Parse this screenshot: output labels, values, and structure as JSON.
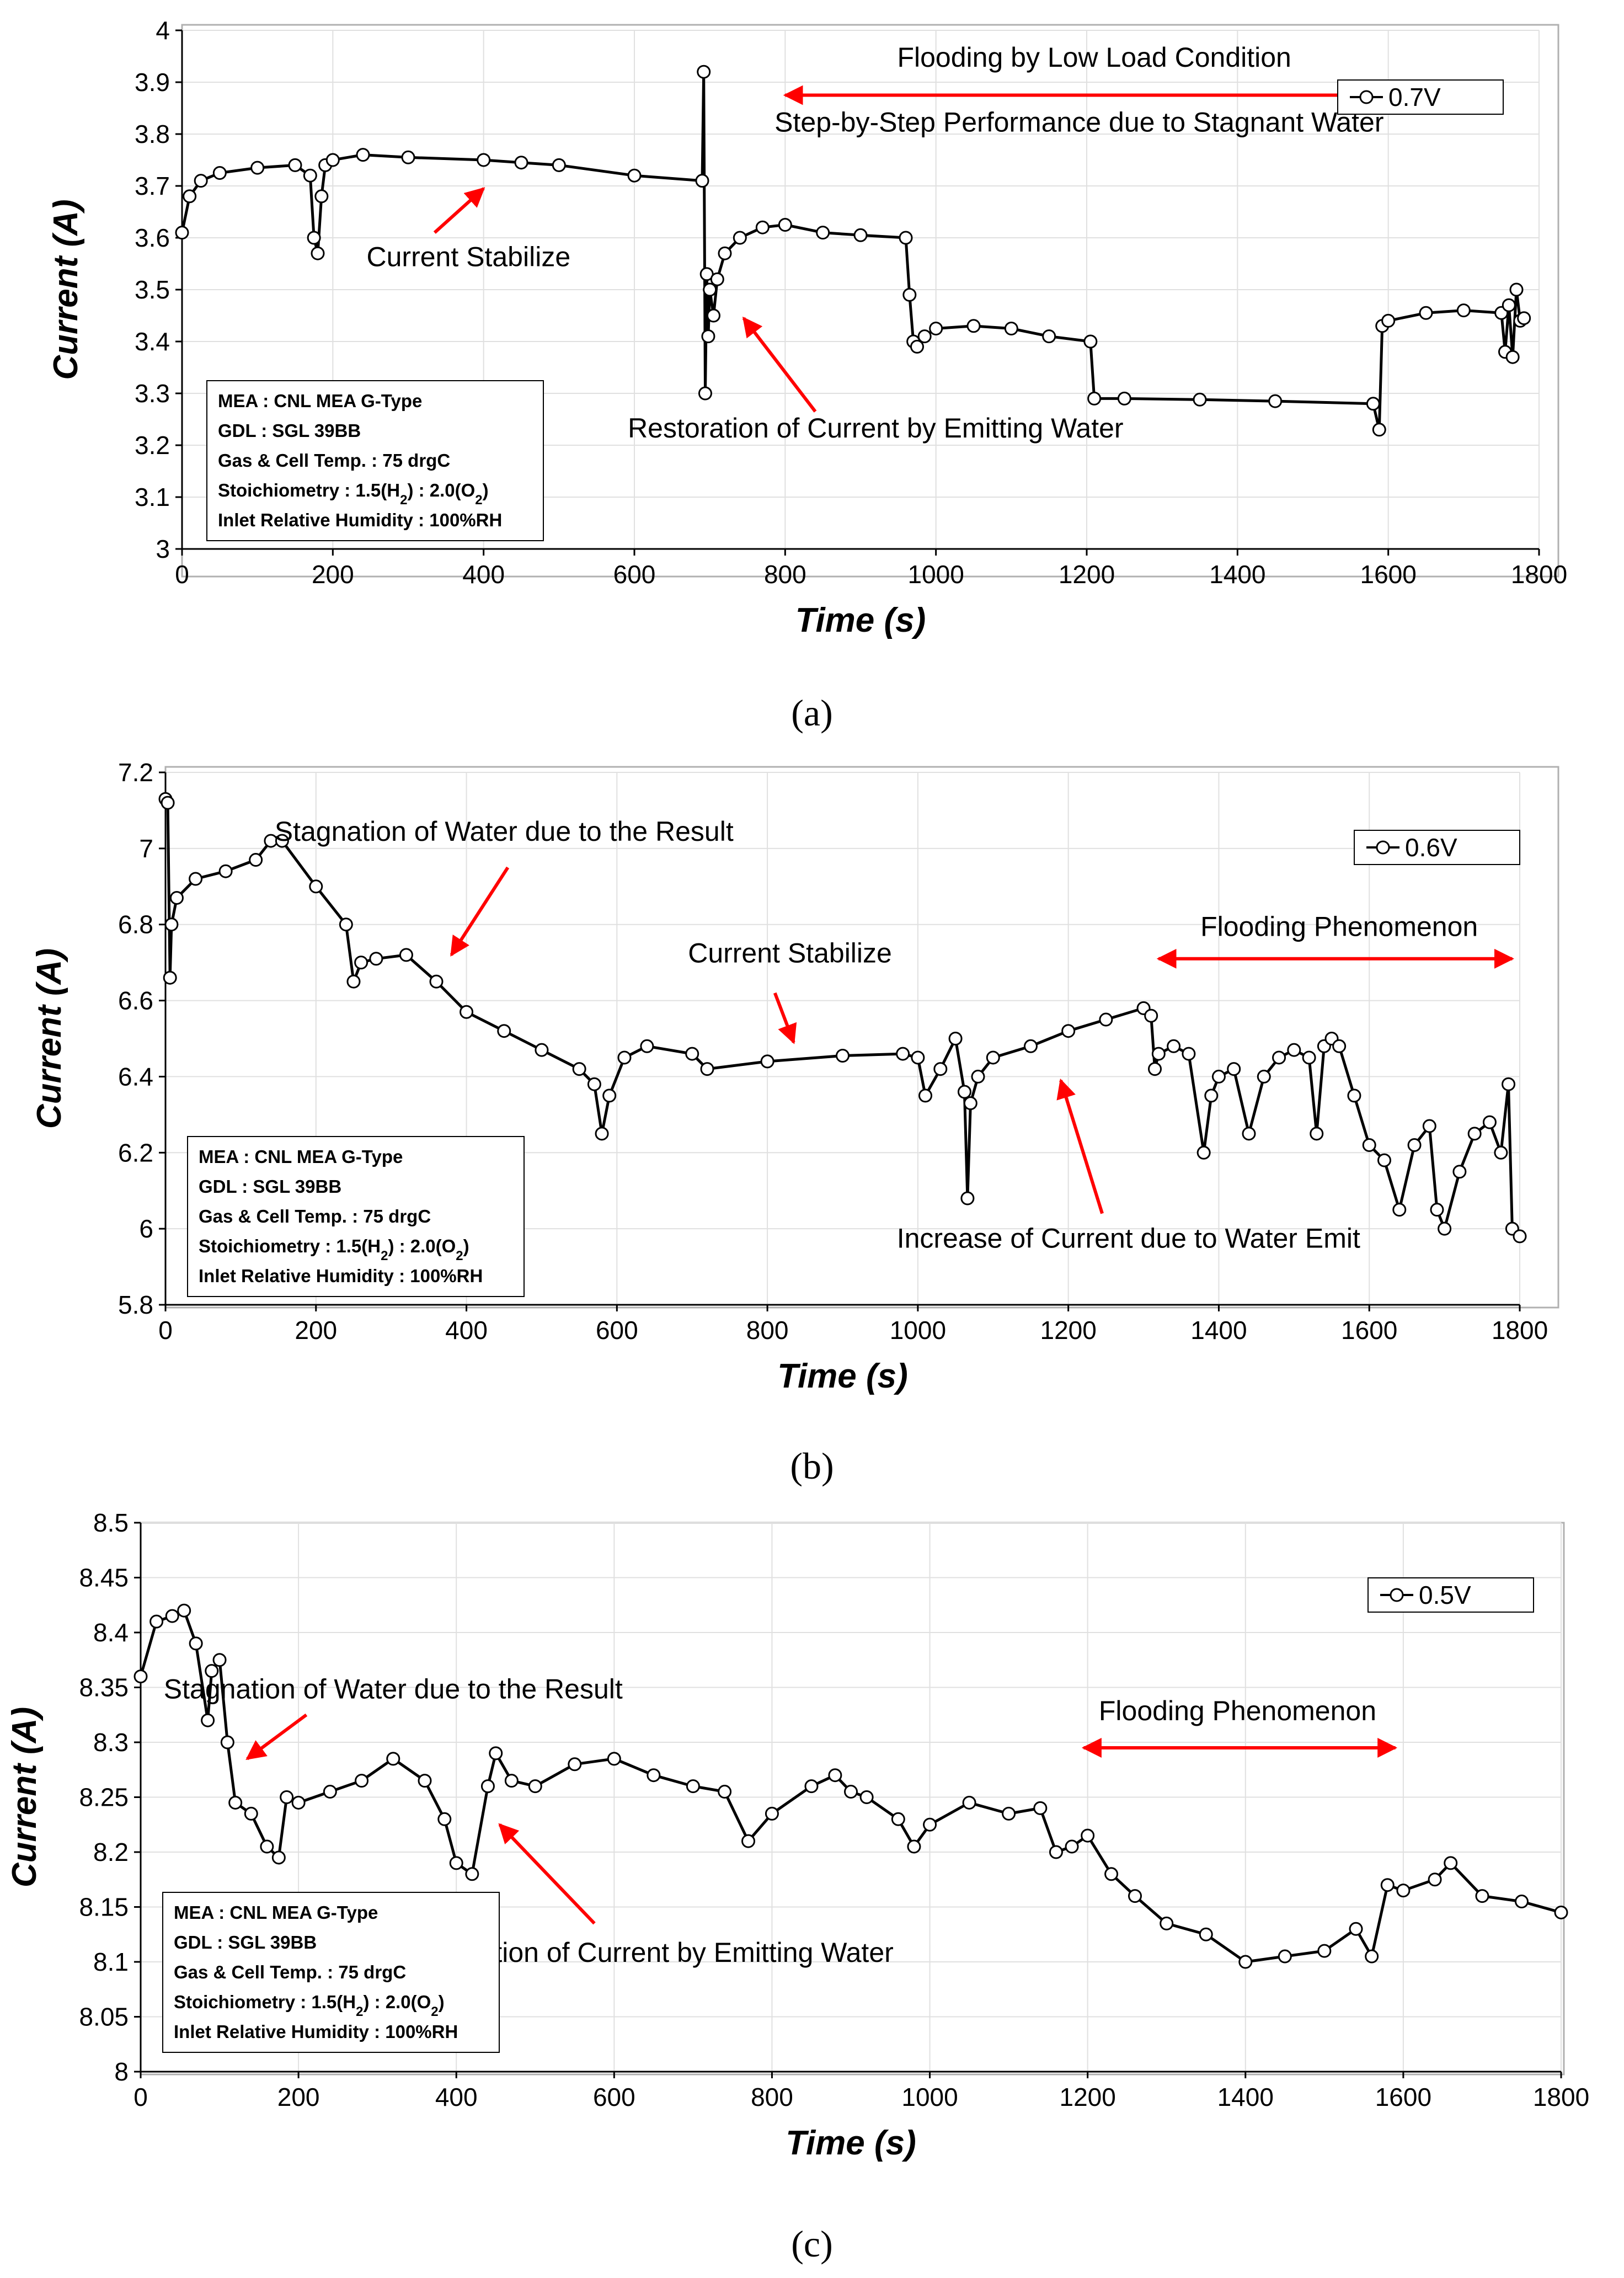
{
  "chart_data": [
    {
      "type": "line",
      "panel": "a",
      "caption": "(a)",
      "xlabel": "Time (s)",
      "ylabel": "Current (A)",
      "xlim": [
        0,
        1800
      ],
      "ylim": [
        3,
        4
      ],
      "xticks": [
        0,
        200,
        400,
        600,
        800,
        1000,
        1200,
        1400,
        1600,
        1800
      ],
      "yticks": [
        3,
        3.1,
        3.2,
        3.3,
        3.4,
        3.5,
        3.6,
        3.7,
        3.8,
        3.9,
        4
      ],
      "grid": true,
      "legend": {
        "position": "top-right",
        "label": "0.7V"
      },
      "info_box": [
        "MEA : CNL MEA G-Type",
        "GDL : SGL 39BB",
        "Gas & Cell Temp. : 75 drgC",
        "Stoichiometry : 1.5(H2) : 2.0(O2)",
        "Inlet Relative Humidity : 100%RH"
      ],
      "annotations": [
        {
          "text": "Flooding by Low Load Condition",
          "x": 1210,
          "y": 3.93
        },
        {
          "text": "Step-by-Step Performance due to Stagnant Water",
          "x": 1190,
          "y": 3.805
        },
        {
          "text": "Current Stabilize",
          "x": 380,
          "y": 3.545
        },
        {
          "text": "Restoration of Current by Emitting Water",
          "x": 920,
          "y": 3.215
        }
      ],
      "ranges": [
        {
          "x1": 800,
          "x2": 1590,
          "y": 3.875
        }
      ],
      "arrows": [
        {
          "x1": 335,
          "y1": 3.61,
          "x2": 400,
          "y2": 3.695
        },
        {
          "x1": 840,
          "y1": 3.265,
          "x2": 745,
          "y2": 3.445
        }
      ],
      "series": [
        {
          "name": "0.7V",
          "x": [
            0,
            10,
            25,
            50,
            100,
            150,
            170,
            175,
            180,
            185,
            190,
            200,
            240,
            300,
            400,
            450,
            500,
            600,
            690,
            692,
            694,
            696,
            698,
            700,
            705,
            710,
            720,
            740,
            770,
            800,
            850,
            900,
            960,
            965,
            970,
            975,
            985,
            1000,
            1050,
            1100,
            1150,
            1205,
            1210,
            1250,
            1350,
            1450,
            1580,
            1588,
            1592,
            1600,
            1650,
            1700,
            1750,
            1755,
            1760,
            1765,
            1770,
            1775,
            1780
          ],
          "y": [
            3.61,
            3.68,
            3.71,
            3.725,
            3.735,
            3.74,
            3.72,
            3.6,
            3.57,
            3.68,
            3.74,
            3.75,
            3.76,
            3.755,
            3.75,
            3.745,
            3.74,
            3.72,
            3.71,
            3.92,
            3.3,
            3.53,
            3.41,
            3.5,
            3.45,
            3.52,
            3.57,
            3.6,
            3.62,
            3.625,
            3.61,
            3.605,
            3.6,
            3.49,
            3.4,
            3.39,
            3.41,
            3.425,
            3.43,
            3.425,
            3.41,
            3.4,
            3.29,
            3.29,
            3.288,
            3.285,
            3.28,
            3.23,
            3.43,
            3.44,
            3.455,
            3.46,
            3.455,
            3.38,
            3.47,
            3.37,
            3.5,
            3.44,
            3.445
          ]
        }
      ]
    },
    {
      "type": "line",
      "panel": "b",
      "caption": "(b)",
      "xlabel": "Time (s)",
      "ylabel": "Current (A)",
      "xlim": [
        0,
        1800
      ],
      "ylim": [
        5.8,
        7.2
      ],
      "xticks": [
        0,
        200,
        400,
        600,
        800,
        1000,
        1200,
        1400,
        1600,
        1800
      ],
      "yticks": [
        5.8,
        6,
        6.2,
        6.4,
        6.6,
        6.8,
        7,
        7.2
      ],
      "grid": true,
      "legend": {
        "position": "top-right",
        "label": "0.6V"
      },
      "info_box": [
        "MEA : CNL MEA G-Type",
        "GDL : SGL 39BB",
        "Gas & Cell Temp. : 75 drgC",
        "Stoichiometry : 1.5(H2) : 2.0(O2)",
        "Inlet Relative Humidity : 100%RH"
      ],
      "annotations": [
        {
          "text": "Stagnation of Water due to the Result",
          "x": 450,
          "y": 7.02
        },
        {
          "text": "Current Stabilize",
          "x": 830,
          "y": 6.7
        },
        {
          "text": "Flooding Phenomenon",
          "x": 1560,
          "y": 6.77
        },
        {
          "text": "Increase of Current due to Water Emit",
          "x": 1280,
          "y": 5.95
        }
      ],
      "ranges": [
        {
          "x1": 1320,
          "x2": 1790,
          "y": 6.71
        }
      ],
      "arrows": [
        {
          "x1": 455,
          "y1": 6.95,
          "x2": 380,
          "y2": 6.72
        },
        {
          "x1": 810,
          "y1": 6.62,
          "x2": 835,
          "y2": 6.49
        },
        {
          "x1": 1245,
          "y1": 6.04,
          "x2": 1190,
          "y2": 6.39
        }
      ],
      "series": [
        {
          "name": "0.6V",
          "x": [
            0,
            3,
            6,
            8,
            15,
            40,
            80,
            120,
            140,
            155,
            200,
            240,
            250,
            260,
            280,
            320,
            360,
            400,
            450,
            500,
            550,
            570,
            580,
            590,
            610,
            640,
            700,
            720,
            800,
            900,
            980,
            1000,
            1010,
            1030,
            1050,
            1062,
            1066,
            1070,
            1080,
            1100,
            1150,
            1200,
            1250,
            1300,
            1310,
            1315,
            1320,
            1340,
            1360,
            1380,
            1390,
            1400,
            1420,
            1440,
            1460,
            1480,
            1500,
            1520,
            1530,
            1540,
            1550,
            1560,
            1580,
            1600,
            1620,
            1640,
            1660,
            1680,
            1690,
            1700,
            1720,
            1740,
            1760,
            1775,
            1785,
            1790,
            1800
          ],
          "y": [
            7.13,
            7.12,
            6.66,
            6.8,
            6.87,
            6.92,
            6.94,
            6.97,
            7.02,
            7.02,
            6.9,
            6.8,
            6.65,
            6.7,
            6.71,
            6.72,
            6.65,
            6.57,
            6.52,
            6.47,
            6.42,
            6.38,
            6.25,
            6.35,
            6.45,
            6.48,
            6.46,
            6.42,
            6.44,
            6.455,
            6.46,
            6.45,
            6.35,
            6.42,
            6.5,
            6.36,
            6.08,
            6.33,
            6.4,
            6.45,
            6.48,
            6.52,
            6.55,
            6.58,
            6.56,
            6.42,
            6.46,
            6.48,
            6.46,
            6.2,
            6.35,
            6.4,
            6.42,
            6.25,
            6.4,
            6.45,
            6.47,
            6.45,
            6.25,
            6.48,
            6.5,
            6.48,
            6.35,
            6.22,
            6.18,
            6.05,
            6.22,
            6.27,
            6.05,
            6.0,
            6.15,
            6.25,
            6.28,
            6.2,
            6.38,
            6.0,
            5.98
          ]
        }
      ]
    },
    {
      "type": "line",
      "panel": "c",
      "caption": "(c)",
      "xlabel": "Time (s)",
      "ylabel": "Current (A)",
      "xlim": [
        0,
        1800
      ],
      "ylim": [
        8,
        8.5
      ],
      "xticks": [
        0,
        200,
        400,
        600,
        800,
        1000,
        1200,
        1400,
        1600,
        1800
      ],
      "yticks": [
        8,
        8.05,
        8.1,
        8.15,
        8.2,
        8.25,
        8.3,
        8.35,
        8.4,
        8.45,
        8.5
      ],
      "grid": true,
      "legend": {
        "position": "top-right",
        "label": "0.5V"
      },
      "info_box": [
        "MEA : CNL MEA G-Type",
        "GDL : SGL 39BB",
        "Gas & Cell Temp. : 75 drgC",
        "Stoichiometry : 1.5(H2) : 2.0(O2)",
        "Inlet Relative Humidity : 100%RH"
      ],
      "annotations": [
        {
          "text": "Stagnation of Water due to the Result",
          "x": 320,
          "y": 8.34
        },
        {
          "text": "Flooding Phenomenon",
          "x": 1390,
          "y": 8.32
        },
        {
          "text": "Restoration of Current by Emitting Water",
          "x": 640,
          "y": 8.1
        }
      ],
      "ranges": [
        {
          "x1": 1195,
          "x2": 1590,
          "y": 8.295
        }
      ],
      "arrows": [
        {
          "x1": 210,
          "y1": 8.325,
          "x2": 135,
          "y2": 8.285
        },
        {
          "x1": 575,
          "y1": 8.135,
          "x2": 455,
          "y2": 8.225
        }
      ],
      "series": [
        {
          "name": "0.5V",
          "x": [
            0,
            20,
            40,
            55,
            70,
            85,
            90,
            100,
            110,
            120,
            140,
            160,
            175,
            185,
            200,
            240,
            280,
            320,
            360,
            385,
            400,
            420,
            440,
            450,
            470,
            500,
            550,
            600,
            650,
            700,
            740,
            770,
            800,
            850,
            880,
            900,
            920,
            960,
            980,
            1000,
            1050,
            1100,
            1140,
            1160,
            1180,
            1200,
            1230,
            1260,
            1300,
            1350,
            1400,
            1450,
            1500,
            1540,
            1560,
            1580,
            1600,
            1640,
            1660,
            1700,
            1750,
            1800
          ],
          "y": [
            8.36,
            8.41,
            8.415,
            8.42,
            8.39,
            8.32,
            8.365,
            8.375,
            8.3,
            8.245,
            8.235,
            8.205,
            8.195,
            8.25,
            8.245,
            8.255,
            8.265,
            8.285,
            8.265,
            8.23,
            8.19,
            8.18,
            8.26,
            8.29,
            8.265,
            8.26,
            8.28,
            8.285,
            8.27,
            8.26,
            8.255,
            8.21,
            8.235,
            8.26,
            8.27,
            8.255,
            8.25,
            8.23,
            8.205,
            8.225,
            8.245,
            8.235,
            8.24,
            8.2,
            8.205,
            8.215,
            8.18,
            8.16,
            8.135,
            8.125,
            8.1,
            8.105,
            8.11,
            8.13,
            8.105,
            8.17,
            8.165,
            8.175,
            8.19,
            8.16,
            8.155,
            8.145
          ]
        }
      ]
    }
  ]
}
